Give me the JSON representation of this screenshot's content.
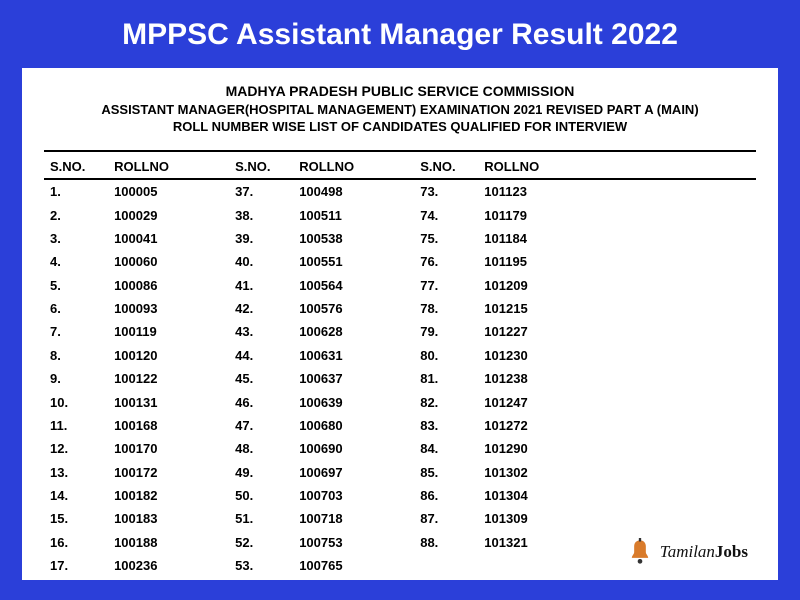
{
  "page": {
    "title": "MPPSC Assistant Manager Result 2022",
    "background_color": "#2b3fd9",
    "title_color": "#ffffff",
    "title_fontsize": 30
  },
  "document": {
    "background_color": "#ffffff",
    "header": {
      "line1": "MADHYA PRADESH PUBLIC SERVICE COMMISSION",
      "line2": "ASSISTANT MANAGER(HOSPITAL MANAGEMENT) EXAMINATION 2021 REVISED PART A (MAIN)",
      "line3": "ROLL NUMBER WISE LIST OF CANDIDATES QUALIFIED FOR INTERVIEW",
      "fontsize": 13,
      "fontweight": "bold",
      "text_color": "#000000"
    },
    "column_headers": {
      "sno": "S.NO.",
      "rollno": "ROLLNO"
    },
    "rows": [
      {
        "c1s": "1.",
        "c1r": "100005",
        "c2s": "37.",
        "c2r": "100498",
        "c3s": "73.",
        "c3r": "101123"
      },
      {
        "c1s": "2.",
        "c1r": "100029",
        "c2s": "38.",
        "c2r": "100511",
        "c3s": "74.",
        "c3r": "101179"
      },
      {
        "c1s": "3.",
        "c1r": "100041",
        "c2s": "39.",
        "c2r": "100538",
        "c3s": "75.",
        "c3r": "101184"
      },
      {
        "c1s": "4.",
        "c1r": "100060",
        "c2s": "40.",
        "c2r": "100551",
        "c3s": "76.",
        "c3r": "101195"
      },
      {
        "c1s": "5.",
        "c1r": "100086",
        "c2s": "41.",
        "c2r": "100564",
        "c3s": "77.",
        "c3r": "101209"
      },
      {
        "c1s": "6.",
        "c1r": "100093",
        "c2s": "42.",
        "c2r": "100576",
        "c3s": "78.",
        "c3r": "101215"
      },
      {
        "c1s": "7.",
        "c1r": "100119",
        "c2s": "43.",
        "c2r": "100628",
        "c3s": "79.",
        "c3r": "101227"
      },
      {
        "c1s": "8.",
        "c1r": "100120",
        "c2s": "44.",
        "c2r": "100631",
        "c3s": "80.",
        "c3r": "101230"
      },
      {
        "c1s": "9.",
        "c1r": "100122",
        "c2s": "45.",
        "c2r": "100637",
        "c3s": "81.",
        "c3r": "101238"
      },
      {
        "c1s": "10.",
        "c1r": "100131",
        "c2s": "46.",
        "c2r": "100639",
        "c3s": "82.",
        "c3r": "101247"
      },
      {
        "c1s": "11.",
        "c1r": "100168",
        "c2s": "47.",
        "c2r": "100680",
        "c3s": "83.",
        "c3r": "101272"
      },
      {
        "c1s": "12.",
        "c1r": "100170",
        "c2s": "48.",
        "c2r": "100690",
        "c3s": "84.",
        "c3r": "101290"
      },
      {
        "c1s": "13.",
        "c1r": "100172",
        "c2s": "49.",
        "c2r": "100697",
        "c3s": "85.",
        "c3r": "101302"
      },
      {
        "c1s": "14.",
        "c1r": "100182",
        "c2s": "50.",
        "c2r": "100703",
        "c3s": "86.",
        "c3r": "101304"
      },
      {
        "c1s": "15.",
        "c1r": "100183",
        "c2s": "51.",
        "c2r": "100718",
        "c3s": "87.",
        "c3r": "101309"
      },
      {
        "c1s": "16.",
        "c1r": "100188",
        "c2s": "52.",
        "c2r": "100753",
        "c3s": "88.",
        "c3r": "101321"
      },
      {
        "c1s": "17.",
        "c1r": "100236",
        "c2s": "53.",
        "c2r": "100765",
        "c3s": "",
        "c3r": ""
      }
    ],
    "cell_fontsize": 13,
    "cell_fontweight": "bold",
    "border_color": "#000000"
  },
  "logo": {
    "text_part1": "Tamilan",
    "text_part2": "Jobs",
    "icon_color_primary": "#d97b2b",
    "icon_color_accent": "#333333",
    "text_color": "#111111"
  }
}
